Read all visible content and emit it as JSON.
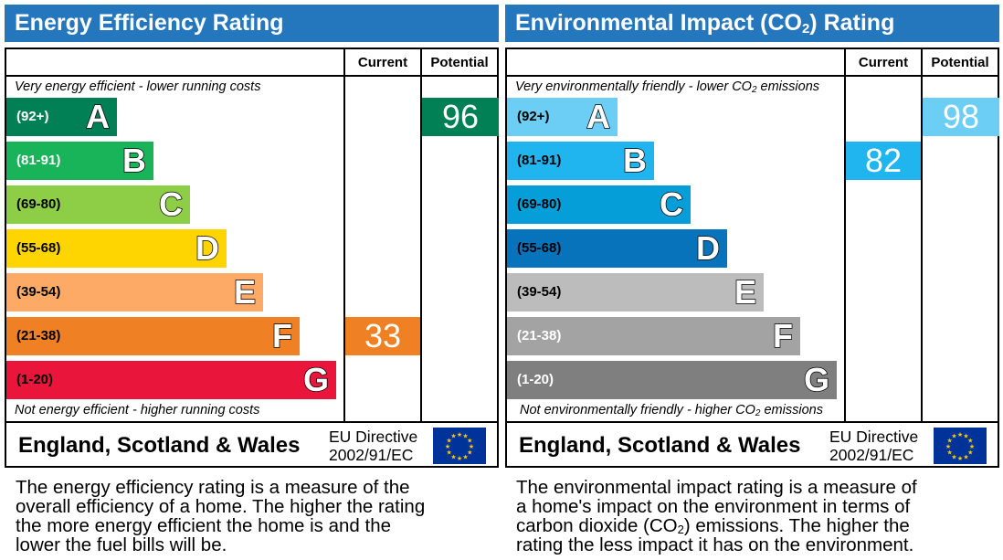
{
  "chart_data": [
    {
      "type": "bar",
      "title": "Energy Efficiency Rating",
      "columns": [
        "Current",
        "Potential"
      ],
      "top_caption": "Very energy efficient - lower running costs",
      "bottom_caption": "Not energy efficient - higher running costs",
      "bands": [
        {
          "letter": "A",
          "range": "(92+)",
          "color": "#008054",
          "range_color": "#ffffff"
        },
        {
          "letter": "B",
          "range": "(81-91)",
          "color": "#19b459",
          "range_color": "#ffffff"
        },
        {
          "letter": "C",
          "range": "(69-80)",
          "color": "#8dce46",
          "range_color": "#000000"
        },
        {
          "letter": "D",
          "range": "(55-68)",
          "color": "#ffd500",
          "range_color": "#000000"
        },
        {
          "letter": "E",
          "range": "(39-54)",
          "color": "#fcaa65",
          "range_color": "#000000"
        },
        {
          "letter": "F",
          "range": "(21-38)",
          "color": "#ef8023",
          "range_color": "#000000"
        },
        {
          "letter": "G",
          "range": "(1-20)",
          "color": "#e9153b",
          "range_color": "#000000"
        }
      ],
      "current": {
        "value": 33,
        "band": "F",
        "color": "#ef8023"
      },
      "potential": {
        "value": 96,
        "band": "A",
        "color": "#008054"
      },
      "footer": {
        "region": "England, Scotland & Wales",
        "directive_line1": "EU Directive",
        "directive_line2": "2002/91/EC"
      },
      "description": [
        "The energy efficiency rating is a measure of the",
        "overall efficiency of a home. The higher the rating",
        "the more energy efficient the home is and the",
        "lower the fuel bills will be."
      ]
    },
    {
      "type": "bar",
      "title_prefix": "Environmental Impact (CO",
      "title_sub": "2",
      "title_suffix": ") Rating",
      "columns": [
        "Current",
        "Potential"
      ],
      "top_caption_prefix": "Very environmentally friendly - lower CO",
      "top_caption_sub": "2",
      "top_caption_suffix": " emissions",
      "bottom_caption_prefix": "Not environmentally friendly - higher CO",
      "bottom_caption_sub": "2",
      "bottom_caption_suffix": " emissions",
      "bands": [
        {
          "letter": "A",
          "range": "(92+)",
          "color": "#6dcef5",
          "range_color": "#000000"
        },
        {
          "letter": "B",
          "range": "(81-91)",
          "color": "#21b5ef",
          "range_color": "#000000"
        },
        {
          "letter": "C",
          "range": "(69-80)",
          "color": "#069ed9",
          "range_color": "#000000"
        },
        {
          "letter": "D",
          "range": "(55-68)",
          "color": "#0673bb",
          "range_color": "#000000"
        },
        {
          "letter": "E",
          "range": "(39-54)",
          "color": "#bcbcbc",
          "range_color": "#000000"
        },
        {
          "letter": "F",
          "range": "(21-38)",
          "color": "#a3a3a3",
          "range_color": "#ffffff"
        },
        {
          "letter": "G",
          "range": "(1-20)",
          "color": "#7f7f7f",
          "range_color": "#ffffff"
        }
      ],
      "current": {
        "value": 82,
        "band": "B",
        "color": "#21b5ef"
      },
      "potential": {
        "value": 98,
        "band": "A",
        "color": "#6dcef5"
      },
      "footer": {
        "region": "England, Scotland & Wales",
        "directive_line1": "EU Directive",
        "directive_line2": "2002/91/EC"
      },
      "description": [
        "The environmental impact rating is a measure of",
        "a home's impact on the environment in terms of"
      ],
      "description_line3_prefix": "carbon dioxide (CO",
      "description_line3_sub": "2",
      "description_line3_suffix": ") emissions. The higher the",
      "description_line4": "rating the less impact it has on the environment."
    }
  ]
}
